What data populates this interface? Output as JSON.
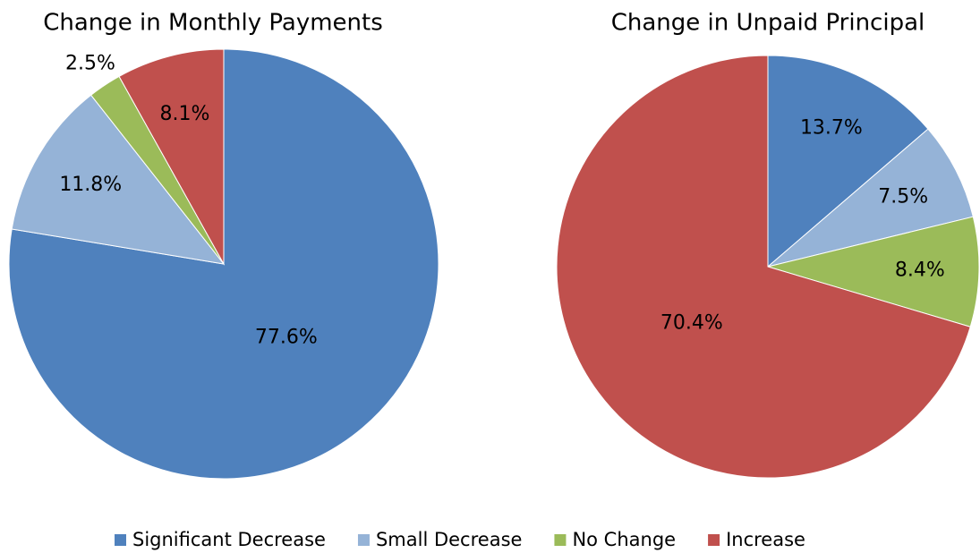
{
  "chart_data": [
    {
      "type": "pie",
      "title": "Change in Monthly Payments",
      "categories": [
        "Significant Decrease",
        "Small Decrease",
        "No Change",
        "Increase"
      ],
      "values": [
        77.6,
        11.8,
        2.5,
        8.1
      ],
      "value_labels": [
        "77.6%",
        "11.8%",
        "2.5%",
        "8.1%"
      ],
      "colors": [
        "#4f81bd",
        "#95b3d7",
        "#9bbb59",
        "#c0504d"
      ],
      "legend": "bottom"
    },
    {
      "type": "pie",
      "title": "Change in Unpaid Principal",
      "categories": [
        "Significant Decrease",
        "Small Decrease",
        "No Change",
        "Increase"
      ],
      "values": [
        13.7,
        7.5,
        8.4,
        70.4
      ],
      "value_labels": [
        "13.7%",
        "7.5%",
        "8.4%",
        "70.4%"
      ],
      "colors": [
        "#4f81bd",
        "#95b3d7",
        "#9bbb59",
        "#c0504d"
      ],
      "legend": "bottom"
    }
  ]
}
